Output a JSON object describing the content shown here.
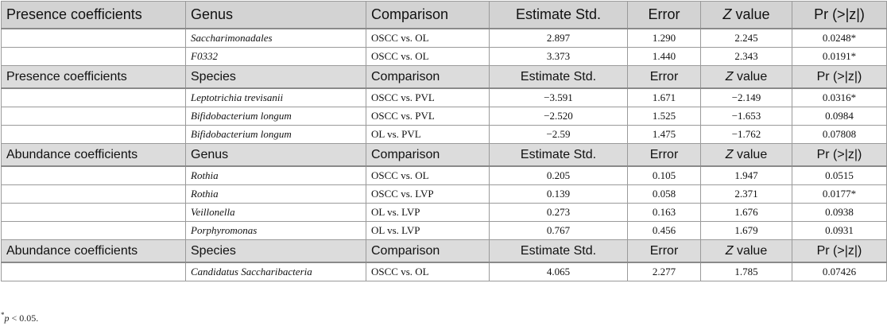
{
  "header_groups": [
    {
      "section": "Presence coefficients",
      "taxon_label": "Genus",
      "columns": {
        "comparison": "Comparison",
        "estimate": "Estimate Std.",
        "error": "Error",
        "z_italic": "Z",
        "z_rest": " value",
        "p": "Pr (>|z|)"
      },
      "rows": [
        {
          "taxon": "Saccharimonadales",
          "comparison": "OSCC vs. OL",
          "estimate": "2.897",
          "error": "1.290",
          "z": "2.245",
          "p": "0.0248*"
        },
        {
          "taxon": "F0332",
          "comparison": "OSCC vs. OL",
          "estimate": "3.373",
          "error": "1.440",
          "z": "2.343",
          "p": "0.0191*"
        }
      ]
    },
    {
      "section": "Presence coefficients",
      "taxon_label": "Species",
      "columns": {
        "comparison": "Comparison",
        "estimate": "Estimate Std.",
        "error": "Error",
        "z_italic": "Z",
        "z_rest": " value",
        "p": "Pr (>|z|)"
      },
      "rows": [
        {
          "taxon": "Leptotrichia trevisanii",
          "comparison": "OSCC vs. PVL",
          "estimate": "−3.591",
          "error": "1.671",
          "z": "−2.149",
          "p": "0.0316*"
        },
        {
          "taxon": "Bifidobacterium longum",
          "comparison": "OSCC vs. PVL",
          "estimate": "−2.520",
          "error": "1.525",
          "z": "−1.653",
          "p": "0.0984"
        },
        {
          "taxon": "Bifidobacterium longum",
          "comparison": "OL vs. PVL",
          "estimate": "−2.59",
          "error": "1.475",
          "z": "−1.762",
          "p": "0.07808"
        }
      ]
    },
    {
      "section": "Abundance coefficients",
      "taxon_label": "Genus",
      "columns": {
        "comparison": "Comparison",
        "estimate": "Estimate Std.",
        "error": "Error",
        "z_italic": "Z",
        "z_rest": " value",
        "p": "Pr (>|z|)"
      },
      "rows": [
        {
          "taxon": "Rothia",
          "comparison": "OSCC vs. OL",
          "estimate": "0.205",
          "error": "0.105",
          "z": "1.947",
          "p": "0.0515"
        },
        {
          "taxon": "Rothia",
          "comparison": "OSCC vs. LVP",
          "estimate": "0.139",
          "error": "0.058",
          "z": "2.371",
          "p": "0.0177*"
        },
        {
          "taxon": "Veillonella",
          "comparison": "OL vs. LVP",
          "estimate": "0.273",
          "error": "0.163",
          "z": "1.676",
          "p": "0.0938"
        },
        {
          "taxon": "Porphyromonas",
          "comparison": "OL vs. LVP",
          "estimate": "0.767",
          "error": "0.456",
          "z": "1.679",
          "p": "0.0931"
        }
      ]
    },
    {
      "section": "Abundance coefficients",
      "taxon_label": "Species",
      "columns": {
        "comparison": "Comparison",
        "estimate": "Estimate Std.",
        "error": "Error",
        "z_italic": "Z",
        "z_rest": " value",
        "p": "Pr (>|z|)"
      },
      "rows": [
        {
          "taxon": "Candidatus Saccharibacteria",
          "comparison": "OSCC vs. OL",
          "estimate": "4.065",
          "error": "2.277",
          "z": "1.785",
          "p": "0.07426"
        }
      ]
    }
  ],
  "footnote": {
    "mark": "*",
    "var": "p",
    "rest": " < 0.05."
  }
}
